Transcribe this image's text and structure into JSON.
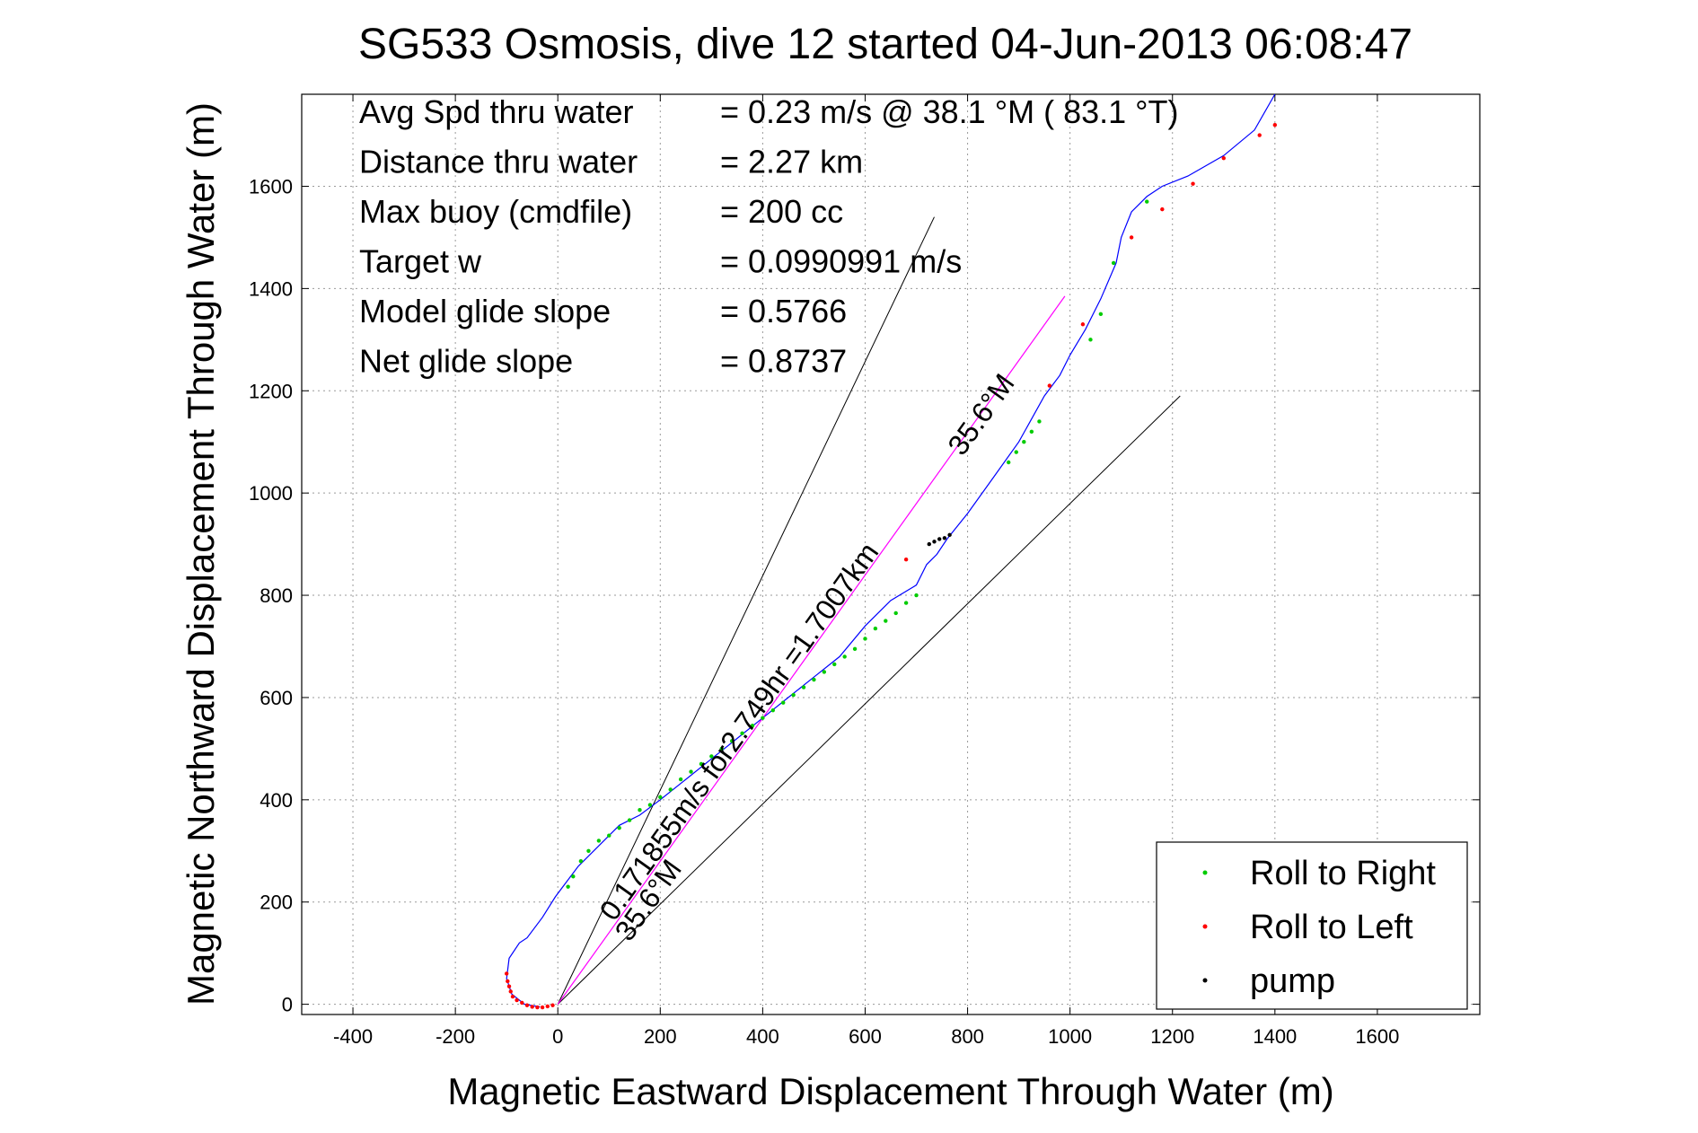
{
  "chart_data": {
    "type": "line",
    "title": "SG533 Osmosis, dive 12 started 04-Jun-2013 06:08:47",
    "xlabel": "Magnetic Eastward Displacement Through Water (m)",
    "ylabel": "Magnetic Northward Displacement Through Water (m)",
    "xlim": [
      -500,
      1800
    ],
    "ylim": [
      -20,
      1780
    ],
    "xticks": [
      -400,
      -200,
      0,
      200,
      400,
      600,
      800,
      1000,
      1200,
      1400,
      1600
    ],
    "yticks": [
      0,
      200,
      400,
      600,
      800,
      1000,
      1200,
      1400,
      1600
    ],
    "grid": true,
    "legend_position": "bottom-right",
    "info_lines": [
      {
        "label": "Avg Spd thru water",
        "value": "=  0.23 m/s @  38.1 °M ( 83.1 °T)"
      },
      {
        "label": "Distance thru water",
        "value": "=  2.27 km"
      },
      {
        "label": "Max buoy (cmdfile)",
        "value": "= 200 cc"
      },
      {
        "label": "Target w",
        "value": "= 0.0990991 m/s"
      },
      {
        "label": "Model glide slope",
        "value": "= 0.5766"
      },
      {
        "label": "Net glide slope",
        "value": "= 0.8737"
      }
    ],
    "annotations": [
      {
        "text": "0.171855m/s for2.749hr =1.7007km",
        "x": 110,
        "y": 160
      },
      {
        "text": "35.6°M",
        "x": 140,
        "y": 120
      },
      {
        "text": "35.6°M",
        "x": 790,
        "y": 1070
      }
    ],
    "series": [
      {
        "name": "",
        "color": "#0000ff",
        "x": [
          -35,
          -65,
          -90,
          -100,
          -95,
          -75,
          -60,
          -30,
          -5,
          10,
          40,
          80,
          120,
          160,
          200,
          250,
          300,
          350,
          400,
          450,
          500,
          550,
          600,
          650,
          700,
          720,
          740,
          760,
          800,
          850,
          900,
          950,
          980,
          1000,
          1030,
          1060,
          1090,
          1100,
          1120,
          1150,
          1180,
          1230,
          1300,
          1360,
          1400
        ],
        "y": [
          -5,
          0,
          20,
          50,
          90,
          120,
          130,
          170,
          210,
          230,
          270,
          310,
          350,
          370,
          400,
          440,
          480,
          520,
          560,
          600,
          640,
          680,
          740,
          790,
          820,
          860,
          880,
          910,
          960,
          1030,
          1100,
          1190,
          1230,
          1270,
          1320,
          1380,
          1450,
          1500,
          1550,
          1580,
          1600,
          1620,
          1660,
          1710,
          1780
        ]
      },
      {
        "name": "",
        "color": "#ff00ff",
        "x": [
          0,
          990
        ],
        "y": [
          0,
          1385
        ]
      }
    ],
    "reference_lines": [
      {
        "color": "#000000",
        "x": [
          0,
          735
        ],
        "y": [
          0,
          1540
        ]
      },
      {
        "color": "#000000",
        "x": [
          0,
          1215
        ],
        "y": [
          0,
          1190
        ]
      }
    ],
    "markers": [
      {
        "name": "Roll to Right",
        "color": "#00cc00",
        "x": [
          20,
          30,
          45,
          60,
          80,
          100,
          120,
          140,
          160,
          180,
          200,
          220,
          240,
          260,
          280,
          300,
          320,
          340,
          360,
          380,
          400,
          420,
          440,
          460,
          480,
          500,
          520,
          540,
          560,
          580,
          600,
          620,
          640,
          660,
          680,
          700,
          880,
          895,
          910,
          925,
          940,
          1040,
          1060,
          1085,
          1150
        ],
        "y": [
          230,
          250,
          280,
          300,
          320,
          330,
          345,
          360,
          380,
          390,
          405,
          420,
          440,
          455,
          470,
          485,
          500,
          515,
          530,
          545,
          560,
          575,
          590,
          605,
          620,
          635,
          650,
          665,
          680,
          695,
          715,
          735,
          750,
          765,
          785,
          800,
          1060,
          1080,
          1100,
          1120,
          1140,
          1300,
          1350,
          1450,
          1570
        ]
      },
      {
        "name": "Roll to Left",
        "color": "#ff0000",
        "x": [
          -100,
          -98,
          -95,
          -92,
          -88,
          -80,
          -70,
          -60,
          -50,
          -40,
          -30,
          -20,
          -10,
          680,
          960,
          1025,
          1120,
          1180,
          1240,
          1300,
          1370,
          1400
        ],
        "y": [
          60,
          45,
          35,
          25,
          15,
          8,
          3,
          -2,
          -5,
          -6,
          -6,
          -4,
          -2,
          870,
          1210,
          1330,
          1500,
          1555,
          1605,
          1655,
          1700,
          1720
        ]
      },
      {
        "name": "pump",
        "color": "#000000",
        "x": [
          725,
          735,
          745,
          755,
          765
        ],
        "y": [
          900,
          905,
          910,
          912,
          918
        ]
      }
    ]
  }
}
